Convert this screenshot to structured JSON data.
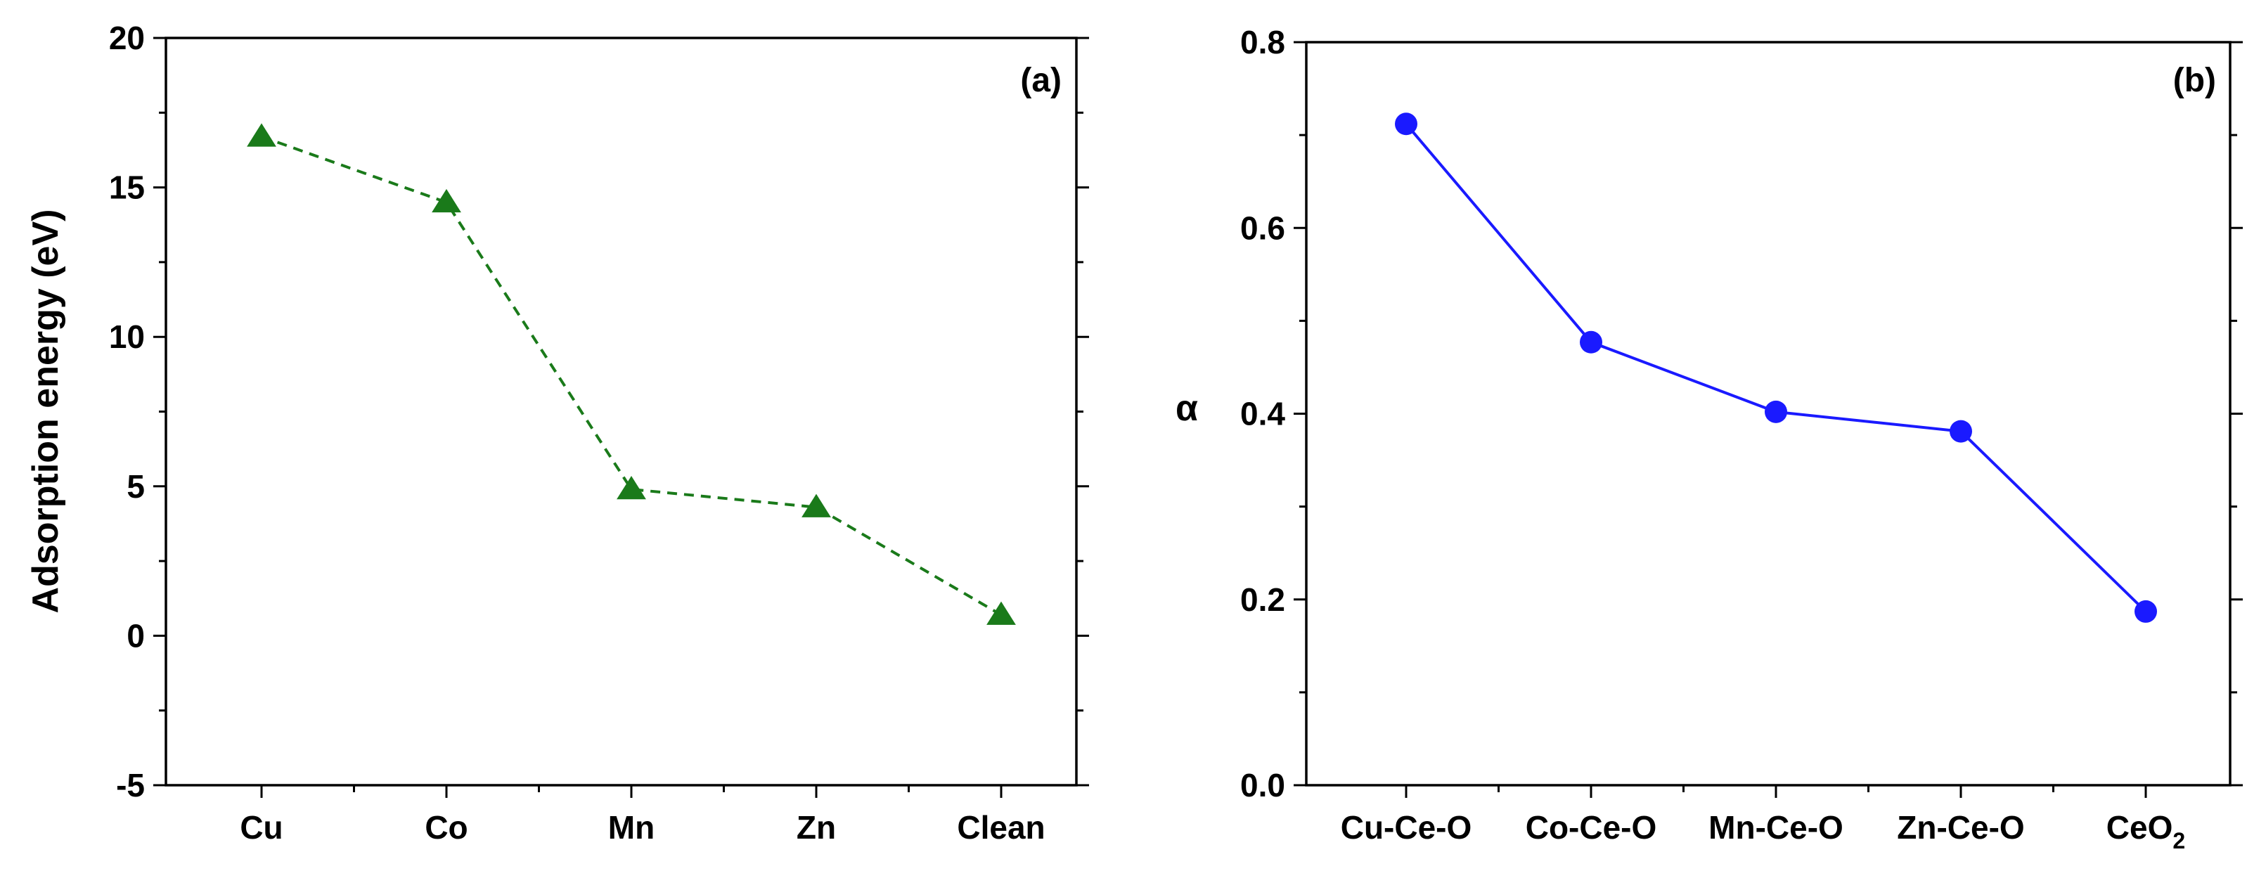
{
  "chart_data": [
    {
      "type": "line",
      "panel_label": "(a)",
      "title": "",
      "xlabel": "",
      "ylabel": "Adsorption energy (eV)",
      "categories": [
        "Cu",
        "Co",
        "Mn",
        "Zn",
        "Clean"
      ],
      "ylim": [
        -5,
        20
      ],
      "yticks": [
        -5,
        0,
        5,
        10,
        15,
        20
      ],
      "ytick_labels": [
        "-5",
        "0",
        "5",
        "10",
        "15",
        "20"
      ],
      "series": [
        {
          "name": "Adsorption energy",
          "values": [
            16.7,
            14.5,
            4.9,
            4.3,
            0.7
          ],
          "color": "#1a7a1a",
          "marker": "triangle",
          "line_style": "dashed"
        }
      ]
    },
    {
      "type": "line",
      "panel_label": "(b)",
      "title": "",
      "xlabel": "",
      "ylabel": "α",
      "categories": [
        "Cu-Ce-O",
        "Co-Ce-O",
        "Mn-Ce-O",
        "Zn-Ce-O",
        "CeO2"
      ],
      "category_labels": [
        {
          "main": "Cu-Ce-O",
          "sub": ""
        },
        {
          "main": "Co-Ce-O",
          "sub": ""
        },
        {
          "main": "Mn-Ce-O",
          "sub": ""
        },
        {
          "main": "Zn-Ce-O",
          "sub": ""
        },
        {
          "main": "CeO",
          "sub": "2"
        }
      ],
      "ylim": [
        0.0,
        0.8
      ],
      "yticks": [
        0.0,
        0.2,
        0.4,
        0.6,
        0.8
      ],
      "ytick_labels": [
        "0.0",
        "0.2",
        "0.4",
        "0.6",
        "0.8"
      ],
      "series": [
        {
          "name": "α",
          "values": [
            0.712,
            0.477,
            0.402,
            0.381,
            0.187
          ],
          "color": "#1a1aff",
          "marker": "circle",
          "line_style": "solid"
        }
      ]
    }
  ]
}
